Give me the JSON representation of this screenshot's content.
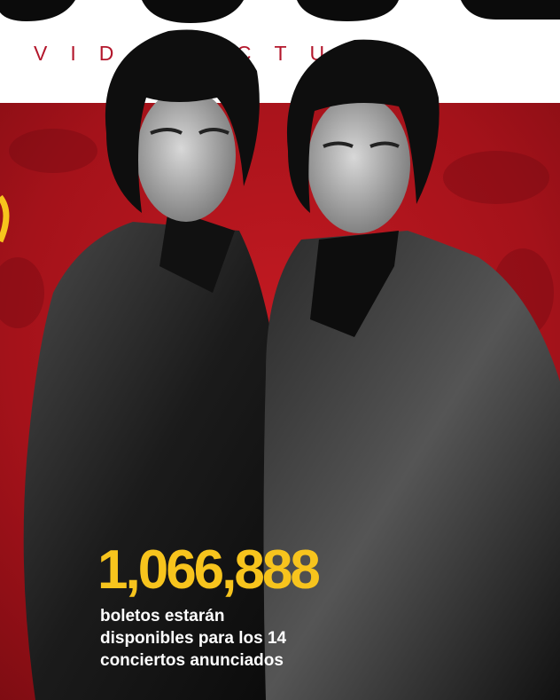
{
  "header": {
    "section": "VIDA ACTUAL"
  },
  "stat": {
    "number": "1,066,888",
    "caption": [
      "boletos estarán",
      "disponibles para los 14",
      "conciertos anunciados"
    ]
  }
}
